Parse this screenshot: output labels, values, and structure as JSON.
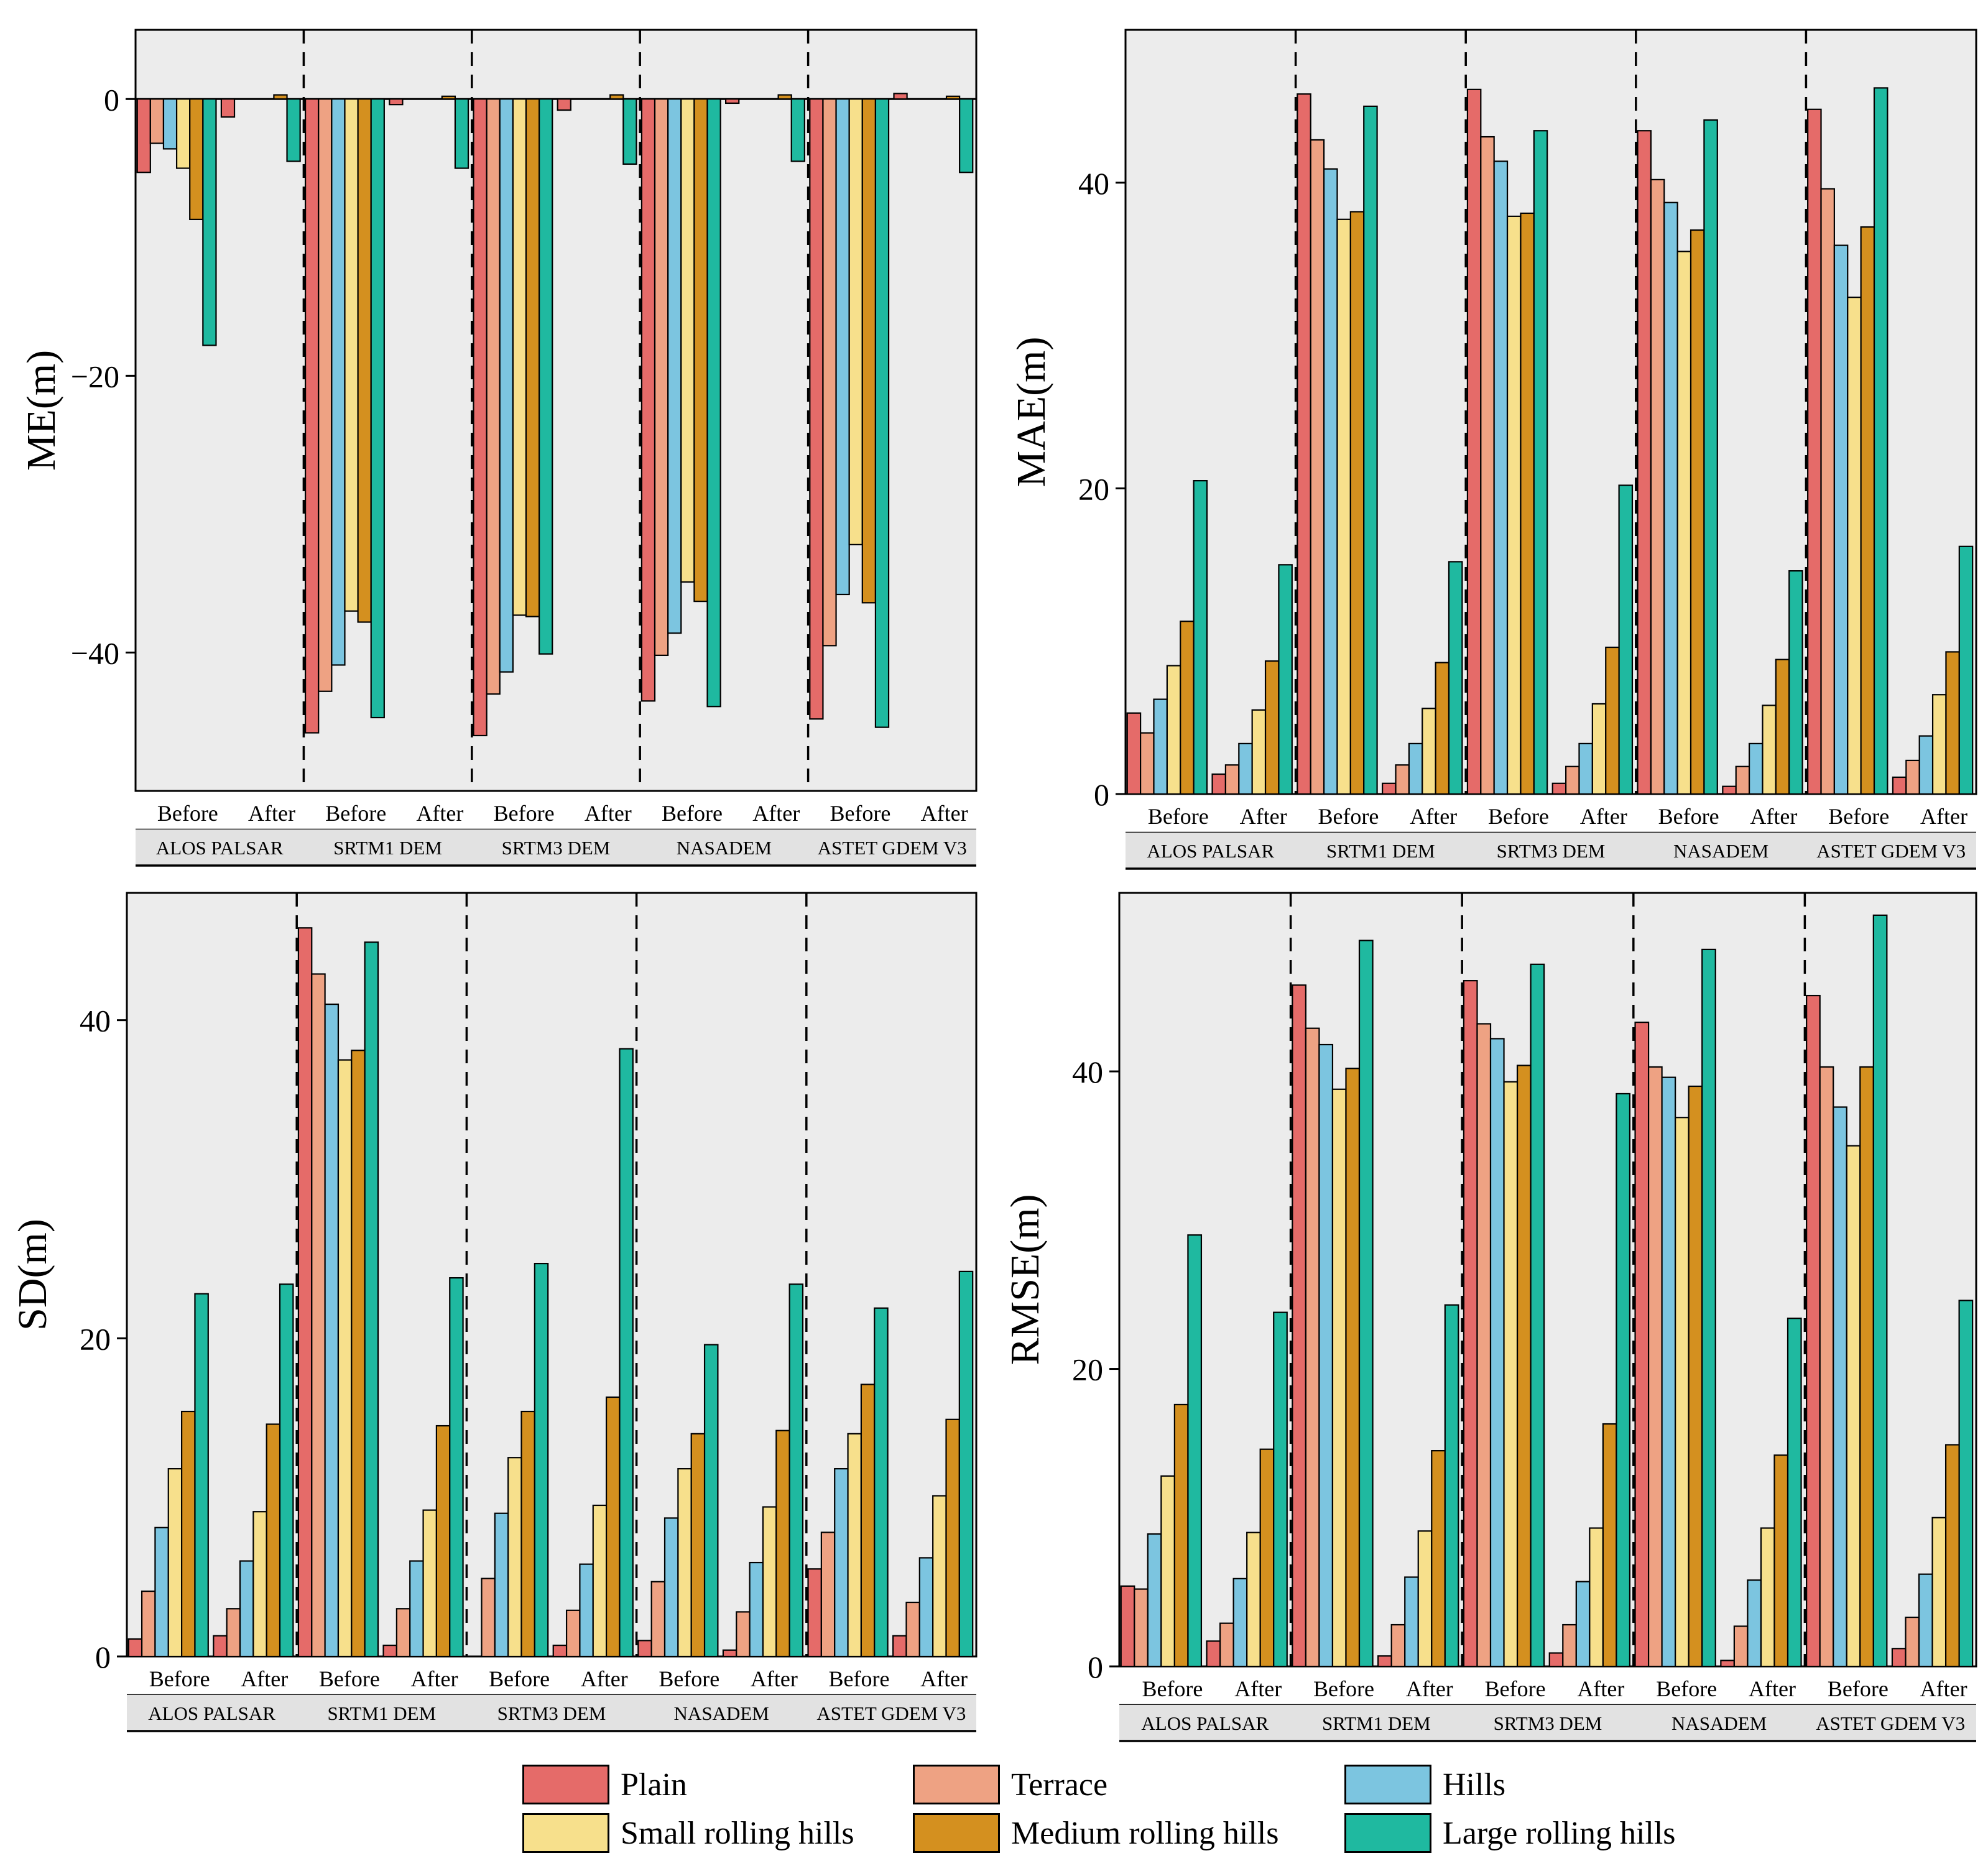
{
  "chart_data": [
    {
      "type": "bar",
      "ylabel": "ME(m)",
      "ylim": [
        -50,
        5
      ],
      "yticks": [
        0,
        -20,
        -40
      ],
      "x_inner_labels": [
        "Before",
        "After"
      ],
      "x_outer_labels": [
        "ALOS PALSAR",
        "SRTM1 DEM",
        "SRTM3 DEM",
        "NASADEM",
        "ASTET GDEM V3"
      ],
      "series": [
        {
          "name": "Plain",
          "values": [
            -5.3,
            -1.3,
            -45.8,
            -0.4,
            -46.0,
            -0.8,
            -43.5,
            -0.3,
            -44.8,
            0.4
          ]
        },
        {
          "name": "Terrace",
          "values": [
            -3.2,
            0.0,
            -42.8,
            0.0,
            -43.0,
            0.0,
            -40.2,
            0.0,
            -39.5,
            0.0
          ]
        },
        {
          "name": "Hills",
          "values": [
            -3.6,
            0.0,
            -40.9,
            0.0,
            -41.4,
            0.0,
            -38.6,
            0.0,
            -35.8,
            0.0
          ]
        },
        {
          "name": "Small rolling hills",
          "values": [
            -5.0,
            0.0,
            -37.0,
            0.0,
            -37.3,
            0.0,
            -34.9,
            0.0,
            -32.2,
            0.0
          ]
        },
        {
          "name": "Medium rolling hills",
          "values": [
            -8.7,
            0.3,
            -37.8,
            0.2,
            -37.4,
            0.3,
            -36.3,
            0.3,
            -36.4,
            0.2
          ]
        },
        {
          "name": "Large rolling hills",
          "values": [
            -17.8,
            -4.5,
            -44.7,
            -5.0,
            -40.1,
            -4.7,
            -43.9,
            -4.5,
            -45.4,
            -5.3
          ]
        }
      ]
    },
    {
      "type": "bar",
      "ylabel": "MAE(m)",
      "ylim": [
        0,
        50
      ],
      "yticks": [
        0,
        20,
        40
      ],
      "x_inner_labels": [
        "Before",
        "After"
      ],
      "x_outer_labels": [
        "ALOS PALSAR",
        "SRTM1 DEM",
        "SRTM3 DEM",
        "NASADEM",
        "ASTET GDEM V3"
      ],
      "series": [
        {
          "name": "Plain",
          "values": [
            5.3,
            1.3,
            45.8,
            0.7,
            46.1,
            0.7,
            43.4,
            0.5,
            44.8,
            1.1
          ]
        },
        {
          "name": "Terrace",
          "values": [
            4.0,
            1.9,
            42.8,
            1.9,
            43.0,
            1.8,
            40.2,
            1.8,
            39.6,
            2.2
          ]
        },
        {
          "name": "Hills",
          "values": [
            6.2,
            3.3,
            40.9,
            3.3,
            41.4,
            3.3,
            38.7,
            3.3,
            35.9,
            3.8
          ]
        },
        {
          "name": "Small rolling hills",
          "values": [
            8.4,
            5.5,
            37.6,
            5.6,
            37.8,
            5.9,
            35.5,
            5.8,
            32.5,
            6.5
          ]
        },
        {
          "name": "Medium rolling hills",
          "values": [
            11.3,
            8.7,
            38.1,
            8.6,
            38.0,
            9.6,
            36.9,
            8.8,
            37.1,
            9.3
          ]
        },
        {
          "name": "Large rolling hills",
          "values": [
            20.5,
            15.0,
            45.0,
            15.2,
            43.4,
            20.2,
            44.1,
            14.6,
            46.2,
            16.2
          ]
        }
      ]
    },
    {
      "type": "bar",
      "ylabel": "SD(m)",
      "ylim": [
        0,
        48
      ],
      "yticks": [
        0,
        20,
        40
      ],
      "x_inner_labels": [
        "Before",
        "After"
      ],
      "x_outer_labels": [
        "ALOS PALSAR",
        "SRTM1 DEM",
        "SRTM3 DEM",
        "NASADEM",
        "ASTET GDEM V3"
      ],
      "series": [
        {
          "name": "Plain",
          "values": [
            1.1,
            1.3,
            45.8,
            0.7,
            0.0,
            0.7,
            1.0,
            0.4,
            5.5,
            1.3
          ]
        },
        {
          "name": "Terrace",
          "values": [
            4.1,
            3.0,
            42.9,
            3.0,
            4.9,
            2.9,
            4.7,
            2.8,
            7.8,
            3.4
          ]
        },
        {
          "name": "Hills",
          "values": [
            8.1,
            6.0,
            41.0,
            6.0,
            9.0,
            5.8,
            8.7,
            5.9,
            11.8,
            6.2
          ]
        },
        {
          "name": "Small rolling hills",
          "values": [
            11.8,
            9.1,
            37.5,
            9.2,
            12.5,
            9.5,
            11.8,
            9.4,
            14.0,
            10.1
          ]
        },
        {
          "name": "Medium rolling hills",
          "values": [
            15.4,
            14.6,
            38.1,
            14.5,
            15.4,
            16.3,
            14.0,
            14.2,
            17.1,
            14.9
          ]
        },
        {
          "name": "Large rolling hills",
          "values": [
            22.8,
            23.4,
            44.9,
            23.8,
            24.7,
            38.2,
            19.6,
            23.4,
            21.9,
            24.2
          ]
        }
      ]
    },
    {
      "type": "bar",
      "ylabel": "RMSE(m)",
      "ylim": [
        0,
        52
      ],
      "yticks": [
        0,
        20,
        40
      ],
      "x_inner_labels": [
        "Before",
        "After"
      ],
      "x_outer_labels": [
        "ALOS PALSAR",
        "SRTM1 DEM",
        "SRTM3 DEM",
        "NASADEM",
        "ASTET GDEM V3"
      ],
      "series": [
        {
          "name": "Plain",
          "values": [
            5.4,
            1.7,
            45.8,
            0.7,
            46.1,
            0.9,
            43.3,
            0.4,
            45.1,
            1.2
          ]
        },
        {
          "name": "Terrace",
          "values": [
            5.2,
            2.9,
            42.9,
            2.8,
            43.2,
            2.8,
            40.3,
            2.7,
            40.3,
            3.3
          ]
        },
        {
          "name": "Hills",
          "values": [
            8.9,
            5.9,
            41.8,
            6.0,
            42.2,
            5.7,
            39.6,
            5.8,
            37.6,
            6.2
          ]
        },
        {
          "name": "Small rolling hills",
          "values": [
            12.8,
            9.0,
            38.8,
            9.1,
            39.3,
            9.3,
            36.9,
            9.3,
            35.0,
            10.0
          ]
        },
        {
          "name": "Medium rolling hills",
          "values": [
            17.6,
            14.6,
            40.2,
            14.5,
            40.4,
            16.3,
            39.0,
            14.2,
            40.3,
            14.9
          ]
        },
        {
          "name": "Large rolling hills",
          "values": [
            29.0,
            23.8,
            48.8,
            24.3,
            47.2,
            38.5,
            48.2,
            23.4,
            50.5,
            24.6
          ]
        }
      ]
    }
  ],
  "legend": [
    {
      "label": "Plain",
      "color": "#e56b69"
    },
    {
      "label": "Terrace",
      "color": "#eea283"
    },
    {
      "label": "Hills",
      "color": "#7cc5e0"
    },
    {
      "label": "Small rolling hills",
      "color": "#f7e08c"
    },
    {
      "label": "Medium rolling hills",
      "color": "#d4901f"
    },
    {
      "label": "Large rolling hills",
      "color": "#1fb9a0"
    }
  ],
  "colors": {
    "panel_background": "#ececec",
    "axis": "#000000",
    "band_background": "#e2e2e2"
  }
}
